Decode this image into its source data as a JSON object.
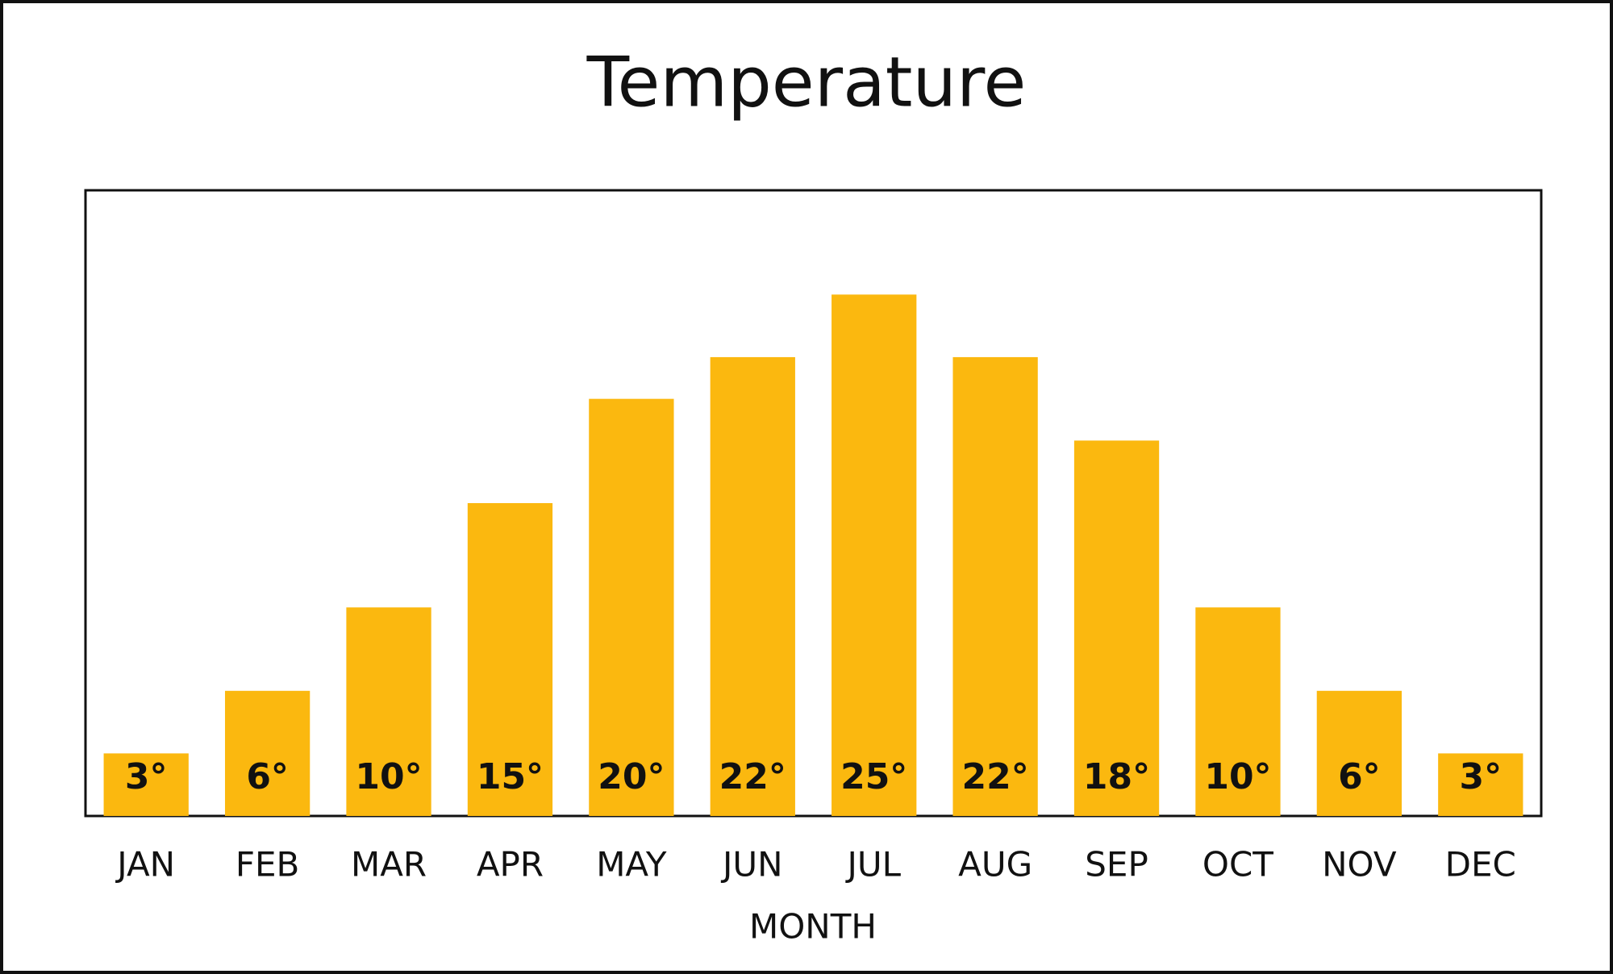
{
  "chart_data": {
    "type": "bar",
    "title": "Temperature",
    "x_label": "MONTH",
    "categories": [
      "JAN",
      "FEB",
      "MAR",
      "APR",
      "MAY",
      "JUN",
      "JUL",
      "AUG",
      "SEP",
      "OCT",
      "NOV",
      "DEC"
    ],
    "values": [
      3,
      6,
      10,
      15,
      20,
      22,
      25,
      22,
      18,
      10,
      6,
      3
    ],
    "value_labels": [
      "3°",
      "6°",
      "10°",
      "15°",
      "20°",
      "22°",
      "25°",
      "22°",
      "18°",
      "10°",
      "6°",
      "3°"
    ],
    "color": "#fbb80f",
    "ylim": [
      0,
      30
    ]
  }
}
